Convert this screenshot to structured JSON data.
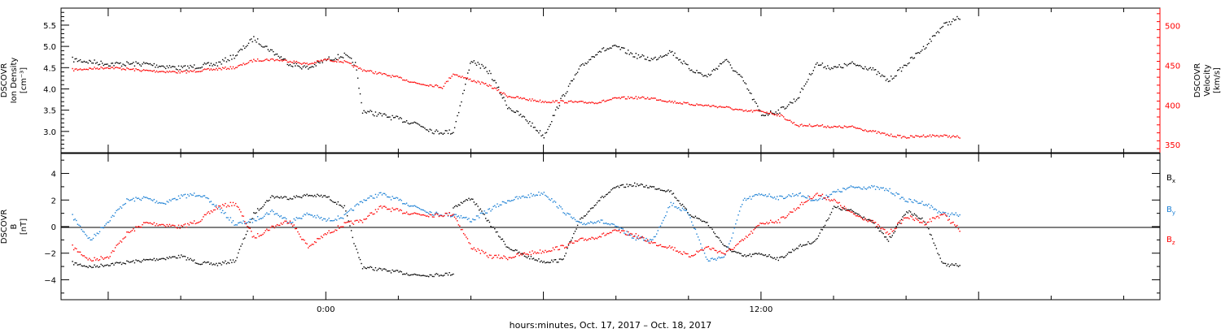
{
  "chart_data": [
    {
      "type": "scatter",
      "panel": "top",
      "ylabel_lines": [
        "DSCOVR",
        "Ion Density",
        "[cm⁻³]"
      ],
      "y2label_lines": [
        "DSCOVR",
        "Velocity",
        "[km/s]"
      ],
      "ylim": [
        2.5,
        5.9
      ],
      "y2lim": [
        340,
        522
      ],
      "y_ticks": [
        3.0,
        3.5,
        4.0,
        4.5,
        5.0,
        5.5
      ],
      "y_tick_labels": [
        "3.0",
        "3.5",
        "4.0",
        "4.5",
        "5.0",
        "5.5"
      ],
      "y2_ticks": [
        350,
        400,
        450,
        500
      ],
      "y2_tick_labels": [
        "350",
        "400",
        "450",
        "500"
      ],
      "series": [
        {
          "axis": "left",
          "color": "#000000",
          "x": [
            -7,
            -6,
            -5,
            -4,
            -3,
            -2.5,
            -2,
            -1.5,
            -1,
            -0.5,
            0,
            0.5,
            0.8,
            1,
            1.5,
            2,
            2.5,
            3,
            3.5,
            3.8,
            4,
            4.5,
            5,
            5.5,
            6,
            6.5,
            7,
            7.5,
            8,
            8.5,
            9,
            9.5,
            10,
            10.5,
            11,
            11.5,
            12,
            12.5,
            13,
            13.5,
            14,
            14.5,
            15,
            15.5,
            16,
            16.5,
            17,
            17.5
          ],
          "y": [
            4.7,
            4.6,
            4.6,
            4.5,
            4.6,
            4.8,
            5.2,
            4.9,
            4.6,
            4.5,
            4.7,
            4.8,
            4.6,
            3.5,
            3.4,
            3.3,
            3.2,
            3.0,
            3.0,
            4.0,
            4.7,
            4.4,
            3.6,
            3.3,
            2.9,
            3.8,
            4.5,
            4.9,
            5.0,
            4.8,
            4.7,
            4.9,
            4.5,
            4.3,
            4.7,
            4.2,
            3.4,
            3.5,
            3.8,
            4.6,
            4.5,
            4.6,
            4.5,
            4.2,
            4.6,
            5.0,
            5.5,
            5.7
          ]
        },
        {
          "axis": "right",
          "color": "#ff0000",
          "x": [
            -7,
            -6,
            -5,
            -4,
            -3,
            -2.5,
            -2,
            -1.5,
            -1,
            -0.5,
            0,
            0.5,
            1,
            1.5,
            2,
            2.5,
            3,
            3.2,
            3.5,
            4,
            4.5,
            5,
            5.5,
            6,
            6.5,
            7,
            7.5,
            8,
            8.5,
            9,
            9.5,
            10,
            10.5,
            11,
            11.5,
            12,
            12.5,
            13,
            13.5,
            14,
            14.5,
            15,
            15.5,
            16,
            16.5,
            17,
            17.5
          ],
          "y": [
            445,
            448,
            444,
            442,
            446,
            448,
            457,
            458,
            456,
            452,
            458,
            455,
            445,
            440,
            435,
            428,
            425,
            423,
            440,
            432,
            425,
            412,
            408,
            405,
            405,
            404,
            404,
            409,
            410,
            409,
            405,
            402,
            400,
            398,
            393,
            393,
            388,
            375,
            375,
            373,
            373,
            368,
            363,
            360,
            362,
            362,
            360
          ]
        }
      ]
    },
    {
      "type": "scatter",
      "panel": "bottom",
      "ylabel_lines": [
        "DSCOVR",
        "B",
        "[nT]"
      ],
      "xlabel": "hours:minutes, Oct. 17, 2017 – Oct. 18, 2017",
      "xlim": [
        -7.3,
        23
      ],
      "x_ticks": [
        0,
        12
      ],
      "x_tick_labels": [
        "0:00",
        "12:00"
      ],
      "ylim": [
        -5.5,
        5.5
      ],
      "y_ticks": [
        -4,
        -2,
        0,
        2,
        4
      ],
      "y_tick_labels": [
        "−4",
        "−2",
        "0",
        "2",
        "4"
      ],
      "series": [
        {
          "name": "Bx",
          "color": "#000000",
          "x": [
            -7,
            -6.5,
            -6,
            -5,
            -4,
            -3.5,
            -3,
            -2.5,
            -2,
            -1.5,
            -1,
            -0.5,
            0,
            0.5,
            0.8,
            1,
            1.5,
            2,
            2.5,
            3,
            3.5,
            3.5,
            4,
            4.5,
            5,
            5.5,
            6,
            6.5,
            7,
            7.5,
            8,
            8.5,
            9,
            9.5,
            10,
            10.5,
            11,
            11.5,
            12,
            12.5,
            13,
            13.5,
            14,
            14.5,
            15,
            15.5,
            16,
            16.5,
            17,
            17.5
          ],
          "y": [
            -2.7,
            -3.0,
            -2.8,
            -2.5,
            -2.2,
            -2.7,
            -2.8,
            -2.5,
            1.0,
            2.3,
            2.2,
            2.4,
            2.3,
            1.5,
            -1.5,
            -3.0,
            -3.2,
            -3.4,
            -3.6,
            -3.6,
            -3.5,
            1.5,
            2.2,
            0.3,
            -1.5,
            -2.2,
            -2.6,
            -2.5,
            0.5,
            2.0,
            3.0,
            3.2,
            3.0,
            2.7,
            1.0,
            0.3,
            -1.5,
            -2.2,
            -2.0,
            -2.4,
            -1.5,
            -1.0,
            1.5,
            1.2,
            0.5,
            -1.0,
            1.2,
            0.5,
            -2.8,
            -2.9
          ]
        },
        {
          "name": "By",
          "color": "#1a7fd4",
          "x": [
            -7,
            -6.5,
            -6,
            -5.5,
            -5,
            -4.5,
            -4,
            -3.5,
            -3,
            -2.5,
            -2,
            -1.5,
            -1,
            -0.5,
            0,
            0.5,
            1,
            1.5,
            2,
            2.5,
            3,
            3.5,
            3.5,
            4,
            4.5,
            5,
            5.5,
            6,
            6.5,
            7,
            7.5,
            8,
            8.5,
            9,
            9.5,
            10,
            10.5,
            11,
            11.5,
            12,
            12.5,
            13,
            13.5,
            14,
            14.5,
            15,
            15.5,
            16,
            16.5,
            17,
            17.5
          ],
          "y": [
            0.8,
            -1.0,
            0.5,
            2.0,
            2.2,
            1.8,
            2.3,
            2.5,
            1.5,
            0.2,
            0.5,
            1.2,
            0.4,
            1.0,
            0.5,
            0.8,
            2.0,
            2.5,
            2.0,
            1.5,
            1.0,
            0.9,
            1.0,
            0.5,
            1.3,
            2.0,
            2.3,
            2.6,
            1.3,
            0.2,
            0.5,
            0.0,
            -0.8,
            -1.0,
            1.8,
            1.0,
            -2.5,
            -2.2,
            2.0,
            2.5,
            2.2,
            2.5,
            2.0,
            2.6,
            3.0,
            3.0,
            2.8,
            2.0,
            1.8,
            1.0,
            0.9
          ]
        },
        {
          "name": "Bz",
          "color": "#ff0000",
          "x": [
            -7,
            -6.5,
            -6,
            -5.5,
            -5,
            -4.5,
            -4,
            -3.5,
            -3,
            -2.5,
            -2,
            -1.5,
            -1,
            -0.5,
            0,
            0.5,
            1,
            1.5,
            2,
            2.5,
            3,
            3.5,
            4,
            4.5,
            5,
            5.5,
            6,
            6.5,
            7,
            7.5,
            8,
            8.5,
            9,
            9.5,
            10,
            10.5,
            11,
            11.5,
            12,
            12.5,
            13,
            13.5,
            14,
            14.5,
            15,
            15.5,
            16,
            16.5,
            17,
            17.5
          ],
          "y": [
            -1.5,
            -2.5,
            -2.2,
            -0.5,
            0.3,
            0.2,
            0.0,
            0.5,
            1.5,
            1.8,
            -0.8,
            0.0,
            0.5,
            -1.5,
            -0.5,
            0.2,
            0.5,
            1.5,
            1.2,
            1.0,
            0.9,
            1.0,
            -1.5,
            -2.2,
            -2.3,
            -2.0,
            -1.8,
            -1.5,
            -1.0,
            -0.7,
            -0.3,
            -0.6,
            -1.2,
            -1.5,
            -2.2,
            -1.5,
            -2.0,
            -1.0,
            0.3,
            0.5,
            1.5,
            2.5,
            2.0,
            1.0,
            0.5,
            -0.5,
            0.8,
            0.3,
            1.0,
            -0.3
          ]
        }
      ],
      "legend_position": "right",
      "legend": [
        {
          "base": "B",
          "sub": "x",
          "color": "#000000"
        },
        {
          "base": "B",
          "sub": "y",
          "color": "#1a7fd4"
        },
        {
          "base": "B",
          "sub": "z",
          "color": "#ff0000"
        }
      ]
    }
  ]
}
